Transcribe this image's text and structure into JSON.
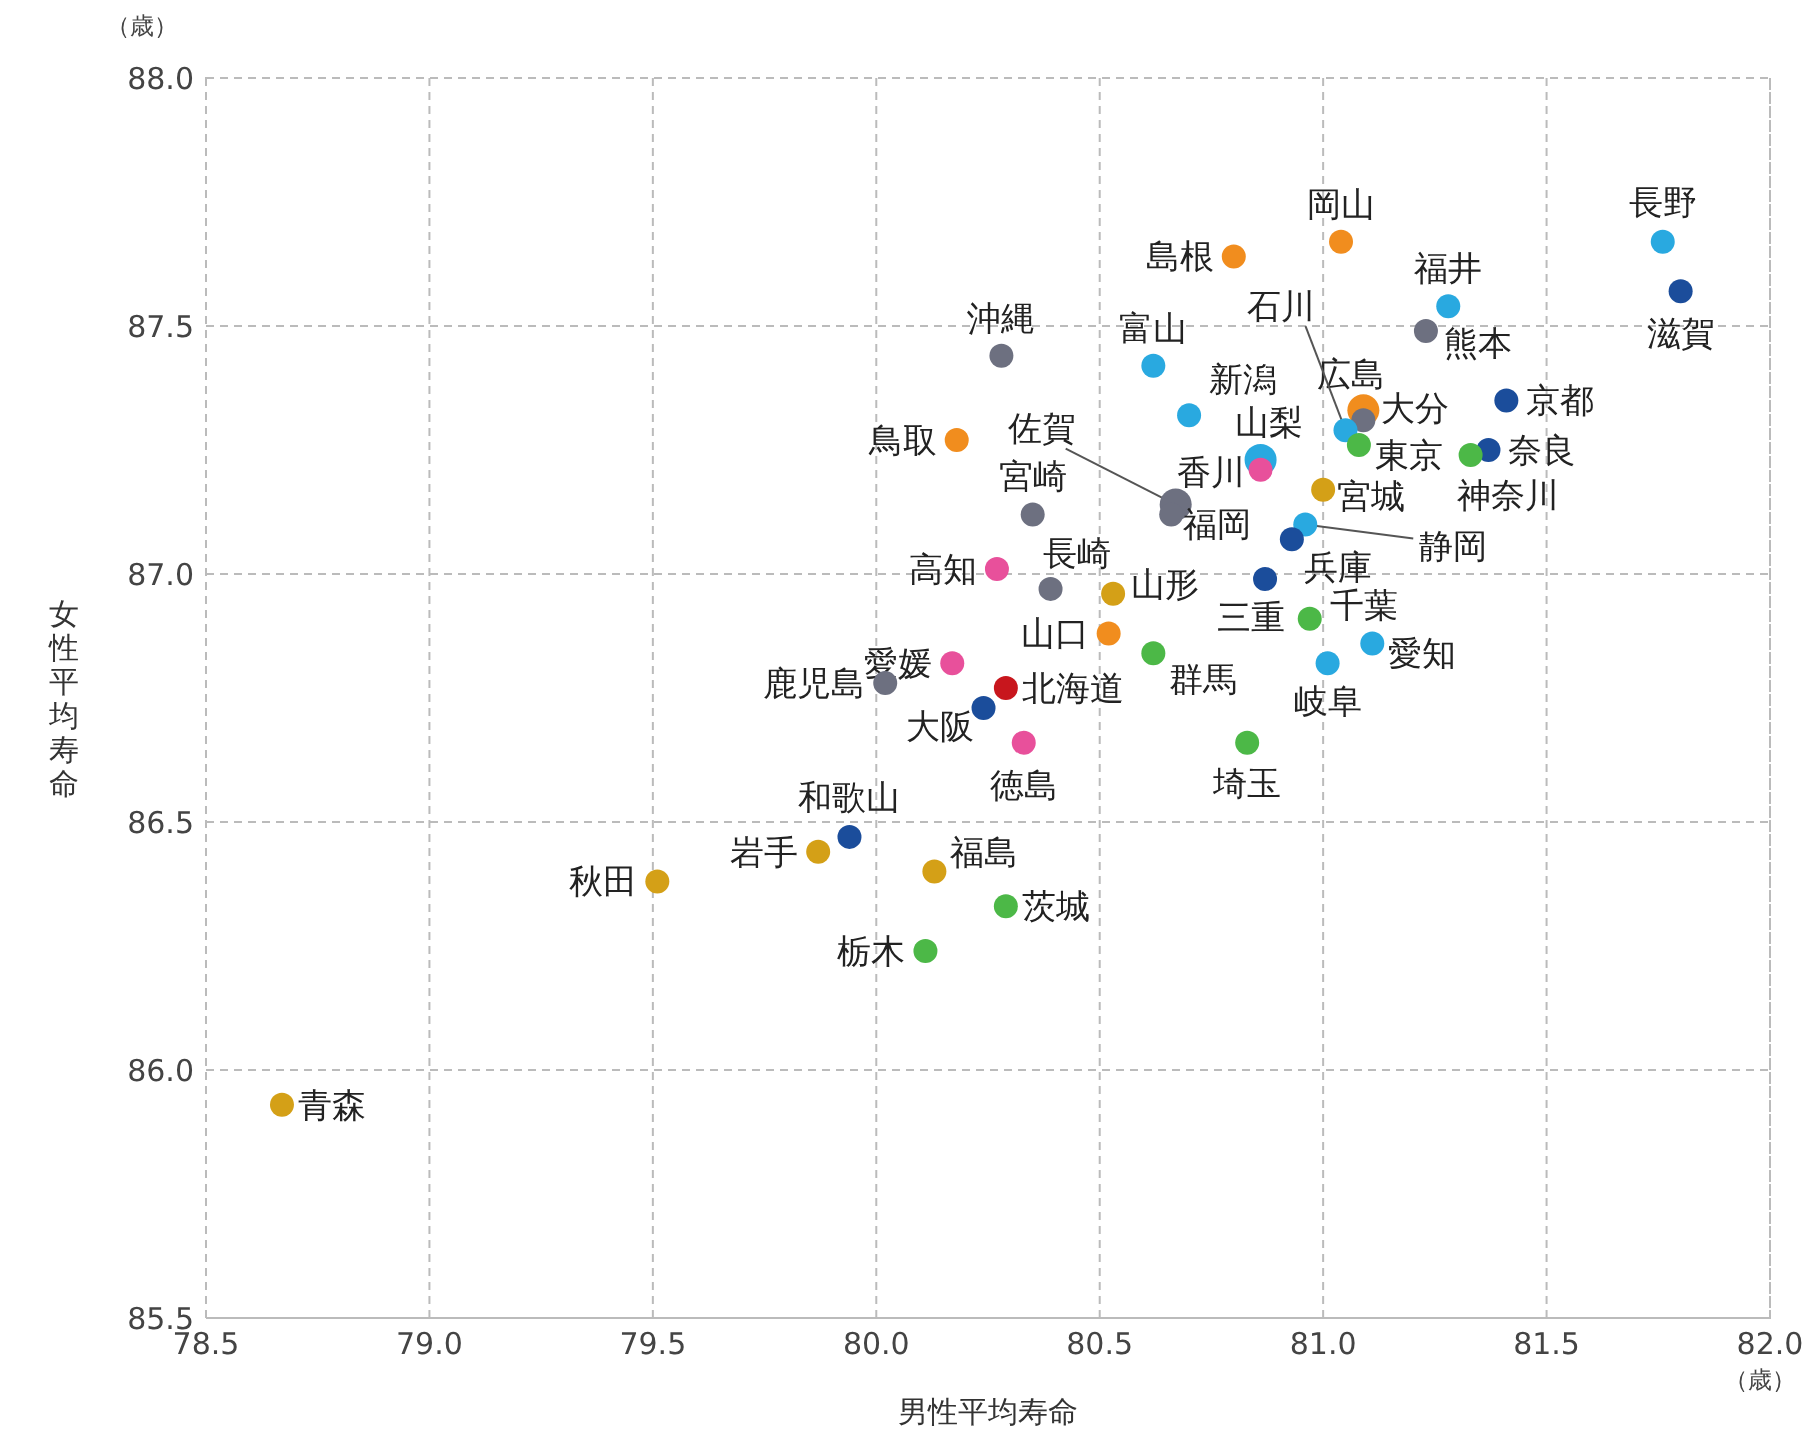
{
  "chart_data": {
    "type": "scatter",
    "xlabel": "男性平均寿命",
    "ylabel": "女性平均寿命",
    "annotations": [
      "（歳）",
      "（歳）"
    ],
    "xlim": [
      78.5,
      82.0
    ],
    "ylim": [
      85.5,
      88.0
    ],
    "xticks": [
      {
        "value": 78.5,
        "label": "78.5"
      },
      {
        "value": 79,
        "label": "79.0"
      },
      {
        "value": 79.5,
        "label": "79.5"
      },
      {
        "value": 80,
        "label": "80.0"
      },
      {
        "value": 80.5,
        "label": "80.5"
      },
      {
        "value": 81,
        "label": "81.0"
      },
      {
        "value": 81.5,
        "label": "81.5"
      },
      {
        "value": 82,
        "label": "82.0"
      }
    ],
    "yticks": [
      {
        "value": 85.5,
        "label": "85.5"
      },
      {
        "value": 86,
        "label": "86.0"
      },
      {
        "value": 86.5,
        "label": "86.5"
      },
      {
        "value": 87,
        "label": "87.0"
      },
      {
        "value": 87.5,
        "label": "87.5"
      },
      {
        "value": 88,
        "label": "88.0"
      }
    ],
    "grid": true,
    "marker": "circle",
    "series": [
      {
        "name": "長野",
        "color": "#29a9e0",
        "x": [
          81.76
        ],
        "values": [
          87.67
        ]
      },
      {
        "name": "滋賀",
        "color": "#1b4d9b",
        "x": [
          81.8
        ],
        "values": [
          87.57
        ]
      },
      {
        "name": "岡山",
        "color": "#f18d1e",
        "x": [
          81.04
        ],
        "values": [
          87.67
        ]
      },
      {
        "name": "島根",
        "color": "#f18d1e",
        "x": [
          80.8
        ],
        "values": [
          87.64
        ]
      },
      {
        "name": "福井",
        "color": "#29a9e0",
        "x": [
          81.28
        ],
        "values": [
          87.54
        ]
      },
      {
        "name": "熊本",
        "color": "#6d7080",
        "x": [
          81.23
        ],
        "values": [
          87.49
        ]
      },
      {
        "name": "沖縄",
        "color": "#6d7080",
        "x": [
          80.28
        ],
        "values": [
          87.44
        ]
      },
      {
        "name": "富山",
        "color": "#29a9e0",
        "x": [
          80.62
        ],
        "values": [
          87.42
        ]
      },
      {
        "name": "新潟",
        "color": "#29a9e0",
        "x": [
          80.7
        ],
        "values": [
          87.32
        ]
      },
      {
        "name": "広島",
        "color": "#f18d1e",
        "x": [
          81.09
        ],
        "values": [
          87.33
        ]
      },
      {
        "name": "大分",
        "color": "#6d7080",
        "x": [
          81.09
        ],
        "values": [
          87.31
        ]
      },
      {
        "name": "京都",
        "color": "#1b4d9b",
        "x": [
          81.41
        ],
        "values": [
          87.35
        ]
      },
      {
        "name": "石川",
        "color": "#29a9e0",
        "x": [
          81.05
        ],
        "values": [
          87.29
        ]
      },
      {
        "name": "東京",
        "color": "#4cb847",
        "x": [
          81.08
        ],
        "values": [
          87.26
        ]
      },
      {
        "name": "奈良",
        "color": "#1b4d9b",
        "x": [
          81.37
        ],
        "values": [
          87.25
        ]
      },
      {
        "name": "神奈川",
        "color": "#4cb847",
        "x": [
          81.33
        ],
        "values": [
          87.24
        ]
      },
      {
        "name": "鳥取",
        "color": "#f18d1e",
        "x": [
          80.18
        ],
        "values": [
          87.27
        ]
      },
      {
        "name": "佐賀",
        "color": "#6d7080",
        "x": [
          80.67
        ],
        "values": [
          87.14
        ]
      },
      {
        "name": "福岡",
        "color": "#6d7080",
        "x": [
          80.66
        ],
        "values": [
          87.12
        ]
      },
      {
        "name": "山梨",
        "color": "#29a9e0",
        "x": [
          80.86
        ],
        "values": [
          87.23
        ]
      },
      {
        "name": "香川",
        "color": "#e8509b",
        "x": [
          80.86
        ],
        "values": [
          87.21
        ]
      },
      {
        "name": "宮崎",
        "color": "#6d7080",
        "x": [
          80.35
        ],
        "values": [
          87.12
        ]
      },
      {
        "name": "宮城",
        "color": "#d4a017",
        "x": [
          81.0
        ],
        "values": [
          87.17
        ]
      },
      {
        "name": "静岡",
        "color": "#29a9e0",
        "x": [
          80.96
        ],
        "values": [
          87.1
        ]
      },
      {
        "name": "兵庫",
        "color": "#1b4d9b",
        "x": [
          80.93
        ],
        "values": [
          87.07
        ]
      },
      {
        "name": "高知",
        "color": "#e8509b",
        "x": [
          80.27
        ],
        "values": [
          87.01
        ]
      },
      {
        "name": "長崎",
        "color": "#6d7080",
        "x": [
          80.39
        ],
        "values": [
          86.97
        ]
      },
      {
        "name": "山形",
        "color": "#d4a017",
        "x": [
          80.53
        ],
        "values": [
          86.96
        ]
      },
      {
        "name": "三重",
        "color": "#1b4d9b",
        "x": [
          80.87
        ],
        "values": [
          86.99
        ]
      },
      {
        "name": "千葉",
        "color": "#4cb847",
        "x": [
          80.97
        ],
        "values": [
          86.91
        ]
      },
      {
        "name": "山口",
        "color": "#f18d1e",
        "x": [
          80.52
        ],
        "values": [
          86.88
        ]
      },
      {
        "name": "愛知",
        "color": "#29a9e0",
        "x": [
          81.11
        ],
        "values": [
          86.86
        ]
      },
      {
        "name": "群馬",
        "color": "#4cb847",
        "x": [
          80.62
        ],
        "values": [
          86.84
        ]
      },
      {
        "name": "岐阜",
        "color": "#29a9e0",
        "x": [
          81.01
        ],
        "values": [
          86.82
        ]
      },
      {
        "name": "愛媛",
        "color": "#e8509b",
        "x": [
          80.17
        ],
        "values": [
          86.82
        ]
      },
      {
        "name": "鹿児島",
        "color": "#6d7080",
        "x": [
          80.02
        ],
        "values": [
          86.78
        ]
      },
      {
        "name": "北海道",
        "color": "#c8161d",
        "x": [
          80.29
        ],
        "values": [
          86.77
        ]
      },
      {
        "name": "大阪",
        "color": "#1b4d9b",
        "x": [
          80.24
        ],
        "values": [
          86.73
        ]
      },
      {
        "name": "徳島",
        "color": "#e8509b",
        "x": [
          80.33
        ],
        "values": [
          86.66
        ]
      },
      {
        "name": "埼玉",
        "color": "#4cb847",
        "x": [
          80.83
        ],
        "values": [
          86.66
        ]
      },
      {
        "name": "和歌山",
        "color": "#1b4d9b",
        "x": [
          79.94
        ],
        "values": [
          86.47
        ]
      },
      {
        "name": "岩手",
        "color": "#d4a017",
        "x": [
          79.87
        ],
        "values": [
          86.44
        ]
      },
      {
        "name": "福島",
        "color": "#d4a017",
        "x": [
          80.13
        ],
        "values": [
          86.4
        ]
      },
      {
        "name": "秋田",
        "color": "#d4a017",
        "x": [
          79.51
        ],
        "values": [
          86.38
        ]
      },
      {
        "name": "茨城",
        "color": "#4cb847",
        "x": [
          80.29
        ],
        "values": [
          86.33
        ]
      },
      {
        "name": "栃木",
        "color": "#4cb847",
        "x": [
          80.11
        ],
        "values": [
          86.24
        ]
      },
      {
        "name": "青森",
        "color": "#d4a017",
        "x": [
          78.67
        ],
        "values": [
          85.93
        ]
      }
    ]
  }
}
